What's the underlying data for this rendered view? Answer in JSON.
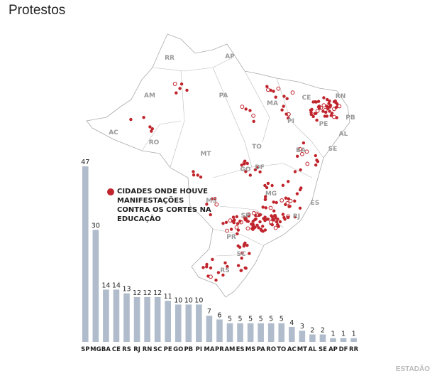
{
  "title": "Protestos",
  "legend": {
    "text": "CIDADES ONDE HOUVE MANIFESTAÇÕES CONTRA OS CORTES NA EDUCAÇÃO",
    "color": "#c0242c"
  },
  "logo": "ESTADÃO",
  "map": {
    "state_labels": [
      "RR",
      "AP",
      "AM",
      "PA",
      "MA",
      "RN",
      "CE",
      "PB",
      "PI",
      "PE",
      "AL",
      "AC",
      "RO",
      "TO",
      "SE",
      "BA",
      "MT",
      "GO",
      "DF",
      "MG",
      "ES",
      "MS",
      "RJ",
      "SP",
      "PR",
      "SC",
      "RS"
    ]
  },
  "chart_data": {
    "type": "bar",
    "title": "Protestos",
    "categories": [
      "SP",
      "MG",
      "BA",
      "CE",
      "RS",
      "RJ",
      "RN",
      "SC",
      "PE",
      "GO",
      "PB",
      "PI",
      "MA",
      "PR",
      "AM",
      "ES",
      "MS",
      "PA",
      "RO",
      "TO",
      "AC",
      "MT",
      "AL",
      "SE",
      "AP",
      "DF",
      "RR"
    ],
    "values": [
      47,
      30,
      14,
      14,
      13,
      12,
      12,
      12,
      11,
      10,
      10,
      10,
      7,
      6,
      5,
      5,
      5,
      5,
      5,
      5,
      4,
      3,
      2,
      2,
      1,
      1,
      1
    ],
    "ylim": [
      0,
      47
    ],
    "bar_color": "#b0bccb",
    "xlabel": "",
    "ylabel": "",
    "grid": false
  }
}
